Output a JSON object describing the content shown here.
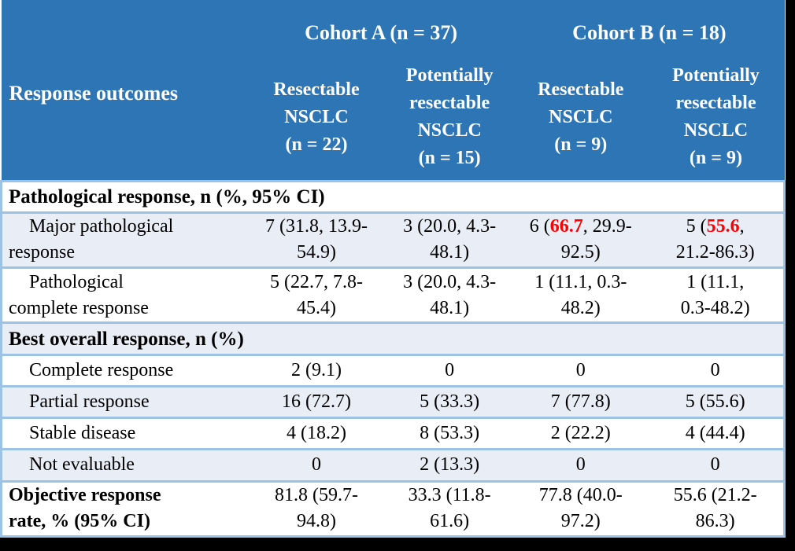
{
  "table": {
    "corner_label": "Response outcomes",
    "cohorts": [
      "Cohort A (n = 37)",
      "Cohort B (n = 18)"
    ],
    "columns": [
      "Resectable\nNSCLC\n(n = 22)",
      "Potentially\nresectable\nNSCLC\n(n = 15)",
      "Resectable\nNSCLC\n(n = 9)",
      "Potentially\nresectable\nNSCLC\n(n = 9)"
    ],
    "rows": [
      {
        "type": "section",
        "label": "Pathological response, n (%, 95% CI)",
        "bg": "white",
        "tall": false
      },
      {
        "type": "data",
        "label": "Major pathological\nresponse",
        "bg": "light",
        "tall": true,
        "cells": [
          [
            "7 (31.8, 13.9-\n54.9)"
          ],
          [
            "3 (20.0, 4.3-\n48.1)"
          ],
          [
            "6 (",
            {
              "text": "66.7",
              "highlight": true
            },
            ", 29.9-\n92.5)"
          ],
          [
            "5 (",
            {
              "text": "55.6",
              "highlight": true
            },
            ",\n21.2-86.3)"
          ]
        ]
      },
      {
        "type": "data",
        "label": "Pathological\ncomplete response",
        "bg": "white",
        "tall": true,
        "cells": [
          [
            "5 (22.7, 7.8-\n45.4)"
          ],
          [
            "3 (20.0, 4.3-\n48.1)"
          ],
          [
            "1 (11.1, 0.3-\n48.2)"
          ],
          [
            "1 (11.1,\n0.3-48.2)"
          ]
        ]
      },
      {
        "type": "section",
        "label": "Best overall response, n (%)",
        "bg": "light",
        "tall": false
      },
      {
        "type": "data",
        "label": "Complete response",
        "bg": "white",
        "tall": false,
        "cells": [
          [
            "2 (9.1)"
          ],
          [
            "0"
          ],
          [
            "0"
          ],
          [
            "0"
          ]
        ]
      },
      {
        "type": "data",
        "label": "Partial response",
        "bg": "light",
        "tall": false,
        "cells": [
          [
            "16 (72.7)"
          ],
          [
            "5 (33.3)"
          ],
          [
            "7 (77.8)"
          ],
          [
            "5 (55.6)"
          ]
        ]
      },
      {
        "type": "data",
        "label": "Stable disease",
        "bg": "white",
        "tall": false,
        "cells": [
          [
            "4 (18.2)"
          ],
          [
            "8 (53.3)"
          ],
          [
            "2 (22.2)"
          ],
          [
            "4 (44.4)"
          ]
        ]
      },
      {
        "type": "data",
        "label": "Not evaluable",
        "bg": "light",
        "tall": false,
        "cells": [
          [
            "0"
          ],
          [
            "2 (13.3)"
          ],
          [
            "0"
          ],
          [
            "0"
          ]
        ]
      },
      {
        "type": "data",
        "label": "Objective response\nrate, % (95% CI)",
        "bg": "white",
        "tall": true,
        "label_bold": true,
        "no_indent": true,
        "cells": [
          [
            "81.8 (59.7-\n94.8)"
          ],
          [
            "33.3 (11.8-\n61.6)"
          ],
          [
            "77.8 (40.0-\n97.2)"
          ],
          [
            "55.6 (21.2-\n86.3)"
          ]
        ]
      }
    ],
    "colors": {
      "header_blue": "#2E75B6",
      "row_light": "#E9EDF6",
      "border_blue": "#9CC2E5",
      "highlight_red": "#FF0000",
      "frame_black": "#000000"
    }
  }
}
